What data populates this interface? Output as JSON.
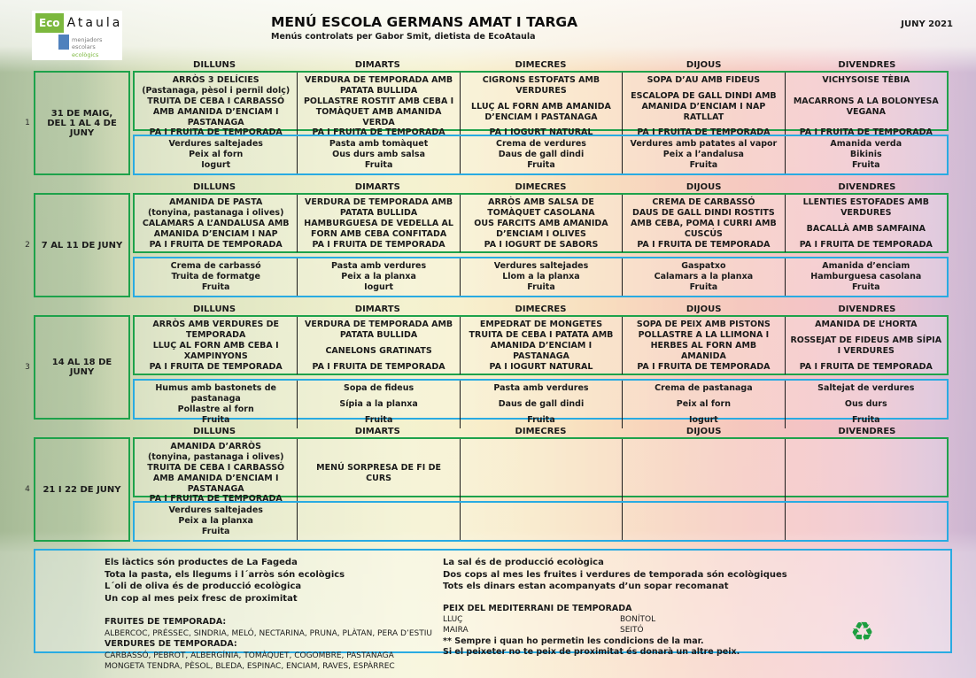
{
  "header": {
    "logo": {
      "eco": "Eco",
      "name": "Ataula",
      "tagline1": "menjadors escolars",
      "tagline2": "ecològics"
    },
    "title": "MENÚ ESCOLA GERMANS AMAT I TARGA",
    "subtitle": "Menús controlats per Gabor Smit, dietista de EcoAtaula",
    "month": "JUNY 2021"
  },
  "days": [
    "DILLUNS",
    "DIMARTS",
    "DIMECRES",
    "DIJOUS",
    "DIVENDRES"
  ],
  "weeks": [
    {
      "number": "1",
      "dates": "31 DE MAIG,\nDEL  1 AL 4 DE\nJUNY",
      "lunches": [
        [
          "ARRÒS 3 DELÍCIES\n(Pastanaga, pèsol i pernil dolç)",
          "TRUITA DE CEBA I CARBASSÓ AMB AMANIDA D’ENCIAM I PASTANAGA",
          "PA I FRUITA DE TEMPORADA"
        ],
        [
          "VERDURA DE TEMPORADA AMB PATATA BULLIDA",
          "POLLASTRE ROSTIT AMB CEBA I TOMÀQUET AMB AMANIDA VERDA",
          "PA I FRUITA DE TEMPORADA"
        ],
        [
          "CIGRONS ESTOFATS AMB VERDURES",
          "LLUÇ AL FORN AMB AMANIDA D’ENCIAM I PASTANAGA",
          "PA I IOGURT NATURAL"
        ],
        [
          "SOPA D’AU AMB FIDEUS",
          "ESCALOPA DE GALL DINDI AMB AMANIDA D’ENCIAM I NAP RATLLAT",
          "PA I FRUITA DE TEMPORADA"
        ],
        [
          "VICHYSOISE TÈBIA",
          "MACARRONS A LA BOLONYESA VEGANA",
          "PA I FRUITA DE TEMPORADA"
        ]
      ],
      "dinners": [
        [
          "Verdures saltejades",
          "Peix al forn",
          "Iogurt"
        ],
        [
          "Pasta amb tomàquet",
          "Ous durs amb salsa",
          "Fruita"
        ],
        [
          "Crema de verdures",
          "Daus de gall dindi",
          "Fruita"
        ],
        [
          "Verdures amb patates al vapor",
          "Peix a l’andalusa",
          "Fruita"
        ],
        [
          "Amanida verda",
          "Bikinis",
          "Fruita"
        ]
      ]
    },
    {
      "number": "2",
      "dates": "7 AL 11 DE JUNY",
      "lunches": [
        [
          "AMANIDA DE PASTA\n(tonyina, pastanaga i olives)",
          "CALAMARS A L’ANDALUSA AMB AMANIDA D’ENCIAM I NAP",
          "PA I FRUITA DE TEMPORADA"
        ],
        [
          "VERDURA DE TEMPORADA AMB PATATA BULLIDA",
          "HAMBURGUESA DE VEDELLA AL FORN AMB CEBA CONFITADA",
          "PA I FRUITA DE TEMPORADA"
        ],
        [
          "ARRÒS AMB SALSA DE TOMÀQUET CASOLANA",
          "OUS FARCITS AMB AMANIDA D’ENCIAM I OLIVES",
          "PA I IOGURT DE SABORS"
        ],
        [
          "CREMA DE CARBASSÓ",
          "DAUS DE GALL DINDI ROSTITS AMB CEBA, POMA I CURRI AMB CUSCÚS",
          "PA I FRUITA DE TEMPORADA"
        ],
        [
          "LLENTIES ESTOFADES AMB VERDURES",
          "BACALLÀ AMB SAMFAINA",
          "PA I FRUITA DE TEMPORADA"
        ]
      ],
      "dinners": [
        [
          "Crema de carbassó",
          "Truita de formatge",
          "Fruita"
        ],
        [
          "Pasta amb verdures",
          "Peix a la planxa",
          "Iogurt"
        ],
        [
          "Verdures saltejades",
          "Llom a la planxa",
          "Fruita"
        ],
        [
          "Gaspatxo",
          "Calamars a la planxa",
          "Fruita"
        ],
        [
          "Amanida d’enciam",
          "Hamburguesa casolana",
          "Fruita"
        ]
      ]
    },
    {
      "number": "3",
      "dates": "14 AL 18 DE\nJUNY",
      "lunches": [
        [
          "ARRÒS AMB VERDURES DE TEMPORADA",
          "LLUÇ AL FORN AMB CEBA I XAMPINYONS",
          "PA I FRUITA DE TEMPORADA"
        ],
        [
          "VERDURA DE TEMPORADA AMB PATATA BULLIDA",
          "CANELONS GRATINATS",
          "PA I FRUITA DE TEMPORADA"
        ],
        [
          "EMPEDRAT DE MONGETES",
          "TRUITA DE CEBA I PATATA AMB AMANIDA D’ENCIAM I PASTANAGA",
          "PA I IOGURT NATURAL"
        ],
        [
          "SOPA DE PEIX AMB PISTONS",
          "POLLASTRE A LA LLIMONA I HERBES AL FORN AMB AMANIDA",
          "PA I FRUITA DE TEMPORADA"
        ],
        [
          "AMANIDA DE L’HORTA",
          "ROSSEJAT DE FIDEUS AMB SÍPIA I VERDURES",
          "PA I FRUITA DE TEMPORADA"
        ]
      ],
      "dinners": [
        [
          "Humus amb bastonets de pastanaga",
          "Pollastre al forn",
          "Fruita"
        ],
        [
          "Sopa de fideus",
          "Sípia a la planxa",
          "Fruita"
        ],
        [
          "Pasta amb verdures",
          "Daus de gall dindi",
          "Fruita"
        ],
        [
          "Crema de pastanaga",
          "Peix al forn",
          "Iogurt"
        ],
        [
          "Saltejat de verdures",
          "Ous durs",
          "Fruita"
        ]
      ]
    },
    {
      "number": "4",
      "dates": "21 I 22 DE JUNY",
      "lunches": [
        [
          "AMANIDA D’ARRÒS\n(tonyina, pastanaga i olives)",
          "TRUITA DE CEBA I CARBASSÓ AMB AMANIDA D’ENCIAM I PASTANAGA",
          "PA I FRUITA DE TEMPORADA"
        ],
        [
          "MENÚ SORPRESA DE FI DE CURS"
        ],
        [],
        [],
        []
      ],
      "dinners": [
        [
          "Verdures saltejades",
          "Peix a la planxa",
          "Fruita"
        ],
        [],
        [],
        [],
        []
      ]
    }
  ],
  "footer": {
    "notes_left": [
      "Els làctics són productes de La Fageda",
      "Tota la pasta, els llegums i l´arròs són ecològics",
      "L´oli de oliva és de producció ecològica",
      "Un cop al mes peix fresc de proximitat"
    ],
    "notes_right": [
      "La sal és de producció ecològica",
      "Dos cops al mes  les fruites i verdures de temporada són ecològiques",
      "Tots els dinars estan acompanyats d’un sopar recomanat"
    ],
    "fruits": {
      "title": "FRUITES DE TEMPORADA:",
      "lines": [
        "ALBERCOC, PRÉSSEC, SINDRIA, MELÓ, NECTARINA, PRUNA, PLÀTAN, PERA D’ESTIU"
      ]
    },
    "vegetables": {
      "title": "VERDURES DE TEMPORADA:",
      "lines": [
        "CARBASSÓ, PEBROT, ALBERGÍNIA, TOMÀQUET, COGOMBRE, PASTANAGA",
        "MONGETA TENDRA, PÈSOL, BLEDA, ESPINAC, ENCIAM, RAVES, ESPÀRREC"
      ]
    },
    "fish": {
      "title": "PEIX DEL MEDITERRANI DE TEMPORADA",
      "columns": [
        [
          "LLUÇ",
          "MAIRA"
        ],
        [
          "BONÍTOL",
          "SEITÓ"
        ]
      ],
      "notes": [
        "** Sempre i quan ho permetin les condicions de la mar.",
        "Si el peixeter no te peix de proximitat és donarà un altre peix."
      ]
    }
  },
  "icons": {
    "recycle": "♻"
  },
  "colors": {
    "menu_green": "#1ea24b",
    "dinner_blue": "#29abe2",
    "logo_green": "#7cb83e",
    "logo_blue": "#4f81bd",
    "recycle_green": "#1c9e3f"
  }
}
